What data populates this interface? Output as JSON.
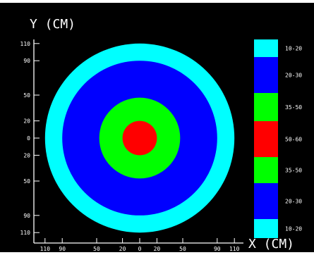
{
  "chart_data": {
    "type": "heatmap",
    "title": "",
    "ylabel": "Y (CM)",
    "xlabel": "X (CM)",
    "x_ticks": [
      "110",
      "90",
      "50",
      "20",
      "0",
      "20",
      "50",
      "90",
      "110"
    ],
    "y_ticks": [
      "110",
      "90",
      "50",
      "20",
      "0",
      "20",
      "50",
      "90",
      "110"
    ],
    "x_tick_values": [
      -110,
      -90,
      -50,
      -20,
      0,
      20,
      50,
      90,
      110
    ],
    "y_tick_values": [
      110,
      90,
      50,
      20,
      0,
      -20,
      -50,
      -90,
      -110
    ],
    "rings": [
      {
        "outer_radius_cm": 110,
        "range": "10-20",
        "color": "#00ffff"
      },
      {
        "outer_radius_cm": 90,
        "range": "20-30",
        "color": "#0000ff"
      },
      {
        "outer_radius_cm": 47,
        "range": "35-50",
        "color": "#00ff00"
      },
      {
        "outer_radius_cm": 20,
        "range": "50-60",
        "color": "#ff0000"
      }
    ],
    "legend": {
      "placement": "right",
      "entries": [
        {
          "label": "10-20",
          "color": "#00ffff"
        },
        {
          "label": "20-30",
          "color": "#0000ff"
        },
        {
          "label": "35-50",
          "color": "#00ff00"
        },
        {
          "label": "50-60",
          "color": "#ff0000"
        },
        {
          "label": "35-50",
          "color": "#00ff00"
        },
        {
          "label": "20-30",
          "color": "#0000ff"
        },
        {
          "label": "10-20",
          "color": "#00ffff"
        }
      ]
    },
    "colors": {
      "background": "#000000",
      "axis": "#ffffff",
      "text": "#ffffff"
    }
  }
}
